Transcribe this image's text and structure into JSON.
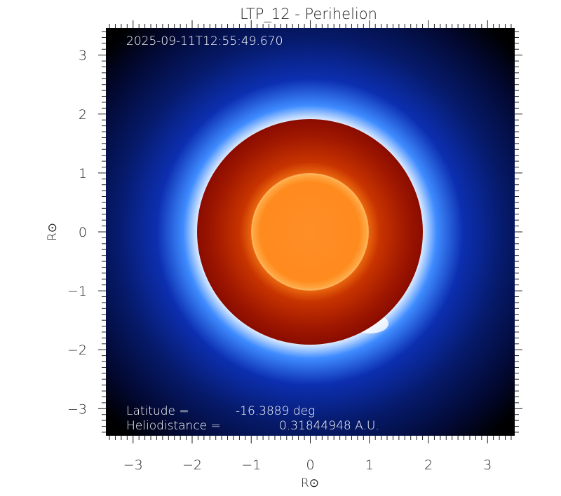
{
  "chart_data": {
    "type": "heatmap",
    "title": "LTP_12 - Perihelion",
    "xlabel": "R⊙",
    "ylabel": "R⊙",
    "xlim": [
      -3.46,
      3.46
    ],
    "ylim": [
      -3.46,
      3.46
    ],
    "xticks": [
      "-3",
      "-2",
      "-1",
      "0",
      "1",
      "2",
      "3"
    ],
    "yticks": [
      "3",
      "2",
      "1",
      "0",
      "-1",
      "-2",
      "-3"
    ],
    "grid": false,
    "description_colors": {
      "corona": "#2a6cff",
      "corona_inner": "#ffffff",
      "occulter": "#a01000",
      "sun_disk": "#ff8a1a",
      "background": "#000000"
    },
    "occulter_radius": 1.9,
    "sun_radius": 1.0,
    "annotations": {
      "timestamp": "2025-09-11T12:55:49.670",
      "latitude_label": "Latitude =",
      "latitude_value": "-16.3889 deg",
      "heliodistance_label": "Heliodistance =",
      "heliodistance_value": "0.31844948 A.U."
    }
  }
}
